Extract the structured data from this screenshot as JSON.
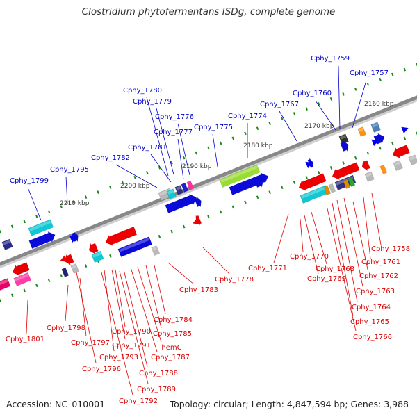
{
  "title": "Clostridium phytofermentans ISDg, complete genome",
  "footer": {
    "accession": "Accession: NC_010001",
    "topology": "Topology: circular; Length: 4,847,594 bp; Genes: 3,988"
  },
  "colors": {
    "top_labels": "#0000cc",
    "bottom_labels": "#dd0000",
    "backbone": "#888888",
    "tick": "#1a8a1a",
    "forward_gene": "#0000ee",
    "reverse_gene": "#ee0000",
    "rrna": "#99dd33"
  },
  "kbp_markers": [
    "2160 kbp",
    "2170 kbp",
    "2180 kbp",
    "2190 kbp",
    "2200 kbp",
    "2210 kbp"
  ],
  "top_labels": [
    "Cphy_1759",
    "Cphy_1757",
    "Cphy_1760",
    "Cphy_1767",
    "Cphy_1774",
    "Cphy_1780",
    "Cphy_1779",
    "Cphy_1776",
    "Cphy_1777",
    "Cphy_1775",
    "Cphy_1781",
    "Cphy_1782",
    "Cphy_1795",
    "Cphy_1799"
  ],
  "bottom_labels": [
    "Cphy_1758",
    "Cphy_1761",
    "Cphy_1762",
    "Cphy_1763",
    "Cphy_1764",
    "Cphy_1765",
    "Cphy_1766",
    "Cphy_1771",
    "Cphy_1770",
    "Cphy_1768",
    "Cphy_1769",
    "Cphy_1778",
    "Cphy_1783",
    "Cphy_1784",
    "Cphy_1785",
    "hemC",
    "Cphy_1787",
    "Cphy_1788",
    "Cphy_1789",
    "Cphy_1790",
    "Cphy_1791",
    "Cphy_1793",
    "Cphy_1792",
    "Cphy_1796",
    "Cphy_1797",
    "Cphy_1798",
    "Cphy_1801"
  ]
}
